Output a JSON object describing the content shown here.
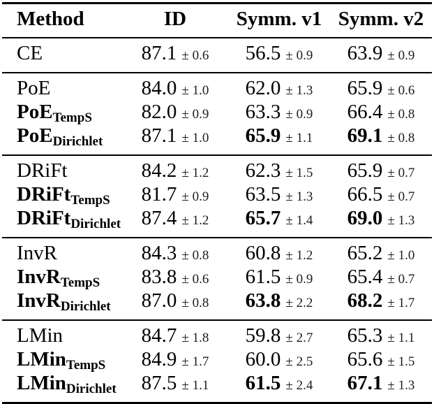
{
  "table": {
    "pm_symbol": "±",
    "columns": [
      "Method",
      "ID",
      "Symm. v1",
      "Symm. v2"
    ],
    "groups": [
      {
        "rows": [
          {
            "method": {
              "label": "CE",
              "sub": "",
              "bold": false
            },
            "cells": [
              {
                "value": "87.1",
                "err": "0.6",
                "bold": false
              },
              {
                "value": "56.5",
                "err": "0.9",
                "bold": false
              },
              {
                "value": "63.9",
                "err": "0.9",
                "bold": false
              }
            ]
          }
        ]
      },
      {
        "rows": [
          {
            "method": {
              "label": "PoE",
              "sub": "",
              "bold": false
            },
            "cells": [
              {
                "value": "84.0",
                "err": "1.0",
                "bold": false
              },
              {
                "value": "62.0",
                "err": "1.3",
                "bold": false
              },
              {
                "value": "65.9",
                "err": "0.6",
                "bold": false
              }
            ]
          },
          {
            "method": {
              "label": "PoE",
              "sub": "TempS",
              "bold": true
            },
            "cells": [
              {
                "value": "82.0",
                "err": "0.9",
                "bold": false
              },
              {
                "value": "63.3",
                "err": "0.9",
                "bold": false
              },
              {
                "value": "66.4",
                "err": "0.8",
                "bold": false
              }
            ]
          },
          {
            "method": {
              "label": "PoE",
              "sub": "Dirichlet",
              "bold": true
            },
            "cells": [
              {
                "value": "87.1",
                "err": "1.0",
                "bold": false
              },
              {
                "value": "65.9",
                "err": "1.1",
                "bold": true
              },
              {
                "value": "69.1",
                "err": "0.8",
                "bold": true
              }
            ]
          }
        ]
      },
      {
        "rows": [
          {
            "method": {
              "label": "DRiFt",
              "sub": "",
              "bold": false
            },
            "cells": [
              {
                "value": "84.2",
                "err": "1.2",
                "bold": false
              },
              {
                "value": "62.3",
                "err": "1.5",
                "bold": false
              },
              {
                "value": "65.9",
                "err": "0.7",
                "bold": false
              }
            ]
          },
          {
            "method": {
              "label": "DRiFt",
              "sub": "TempS",
              "bold": true
            },
            "cells": [
              {
                "value": "81.7",
                "err": "0.9",
                "bold": false
              },
              {
                "value": "63.5",
                "err": "1.3",
                "bold": false
              },
              {
                "value": "66.5",
                "err": "0.7",
                "bold": false
              }
            ]
          },
          {
            "method": {
              "label": "DRiFt",
              "sub": "Dirichlet",
              "bold": true
            },
            "cells": [
              {
                "value": "87.4",
                "err": "1.2",
                "bold": false
              },
              {
                "value": "65.7",
                "err": "1.4",
                "bold": true
              },
              {
                "value": "69.0",
                "err": "1.3",
                "bold": true
              }
            ]
          }
        ]
      },
      {
        "rows": [
          {
            "method": {
              "label": "InvR",
              "sub": "",
              "bold": false
            },
            "cells": [
              {
                "value": "84.3",
                "err": "0.8",
                "bold": false
              },
              {
                "value": "60.8",
                "err": "1.2",
                "bold": false
              },
              {
                "value": "65.2",
                "err": "1.0",
                "bold": false
              }
            ]
          },
          {
            "method": {
              "label": "InvR",
              "sub": "TempS",
              "bold": true
            },
            "cells": [
              {
                "value": "83.8",
                "err": "0.6",
                "bold": false
              },
              {
                "value": "61.5",
                "err": "0.9",
                "bold": false
              },
              {
                "value": "65.4",
                "err": "0.7",
                "bold": false
              }
            ]
          },
          {
            "method": {
              "label": "InvR",
              "sub": "Dirichlet",
              "bold": true
            },
            "cells": [
              {
                "value": "87.0",
                "err": "0.8",
                "bold": false
              },
              {
                "value": "63.8",
                "err": "2.2",
                "bold": true
              },
              {
                "value": "68.2",
                "err": "1.7",
                "bold": true
              }
            ]
          }
        ]
      },
      {
        "rows": [
          {
            "method": {
              "label": "LMin",
              "sub": "",
              "bold": false
            },
            "cells": [
              {
                "value": "84.7",
                "err": "1.8",
                "bold": false
              },
              {
                "value": "59.8",
                "err": "2.7",
                "bold": false
              },
              {
                "value": "65.3",
                "err": "1.1",
                "bold": false
              }
            ]
          },
          {
            "method": {
              "label": "LMin",
              "sub": "TempS",
              "bold": true
            },
            "cells": [
              {
                "value": "84.9",
                "err": "1.7",
                "bold": false
              },
              {
                "value": "60.0",
                "err": "2.5",
                "bold": false
              },
              {
                "value": "65.6",
                "err": "1.5",
                "bold": false
              }
            ]
          },
          {
            "method": {
              "label": "LMin",
              "sub": "Dirichlet",
              "bold": true
            },
            "cells": [
              {
                "value": "87.5",
                "err": "1.1",
                "bold": false
              },
              {
                "value": "61.5",
                "err": "2.4",
                "bold": true
              },
              {
                "value": "67.1",
                "err": "1.3",
                "bold": true
              }
            ]
          }
        ]
      }
    ]
  }
}
